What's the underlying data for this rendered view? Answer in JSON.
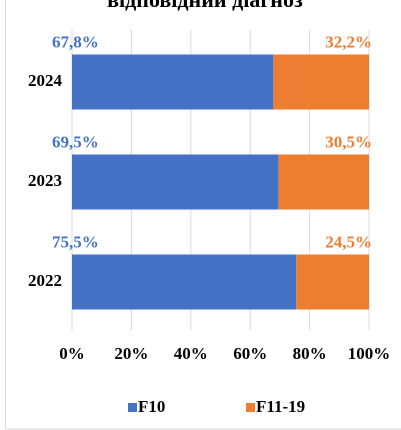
{
  "chart_data": {
    "type": "stacked-bar-horizontal",
    "title": "відповідний діагноз",
    "categories": [
      "2024",
      "2023",
      "2022"
    ],
    "series": [
      {
        "name": "F10",
        "color": "#4472c4",
        "values": [
          67.8,
          69.5,
          75.5
        ],
        "value_labels": [
          "67,8%",
          "69,5%",
          "75,5%"
        ]
      },
      {
        "name": "F11-19",
        "color": "#ed7d31",
        "values": [
          32.2,
          30.5,
          24.5
        ],
        "value_labels": [
          "32,2%",
          "30,5%",
          "24,5%"
        ]
      }
    ],
    "xlim": [
      0,
      100
    ],
    "xticks": [
      {
        "value": 0,
        "label": "0%"
      },
      {
        "value": 20,
        "label": "20%"
      },
      {
        "value": 40,
        "label": "40%"
      },
      {
        "value": 60,
        "label": "60%"
      },
      {
        "value": 80,
        "label": "80%"
      },
      {
        "value": 100,
        "label": "100%"
      }
    ],
    "grid": true,
    "legend": "bottom"
  }
}
